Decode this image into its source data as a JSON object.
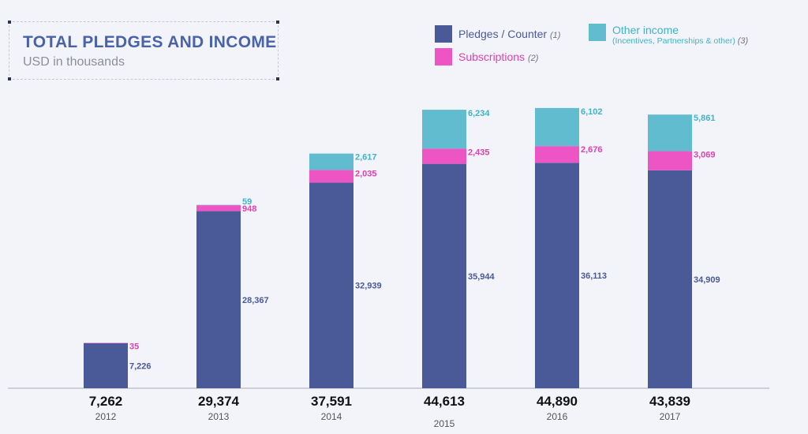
{
  "chart_data": {
    "type": "bar",
    "stacked": true,
    "title": "TOTAL PLEDGES AND INCOME",
    "subtitle": "USD in thousands",
    "categories": [
      "2012",
      "2013",
      "2014",
      "2015",
      "2016",
      "2017"
    ],
    "series": [
      {
        "name": "Pledges / Counter",
        "note": "(1)",
        "color": "#4a5a99",
        "label_color": "#4a5a99",
        "values": [
          7226,
          28367,
          32939,
          35944,
          36113,
          34909
        ]
      },
      {
        "name": "Subscriptions",
        "note": "(2)",
        "color": "#ee55c4",
        "label_color": "#e040b0",
        "values": [
          35,
          948,
          2035,
          2435,
          2676,
          3069
        ]
      },
      {
        "name": "Other income",
        "sub_name": "(Incentives, Partnerships & other)",
        "note": "(3)",
        "color": "#62bccf",
        "label_color": "#3fb3c9",
        "values": [
          null,
          59,
          2617,
          6234,
          6102,
          5861
        ]
      }
    ],
    "totals": [
      "7,262",
      "29,374",
      "37,591",
      "44,613",
      "44,890",
      "43,839"
    ],
    "ylim": [
      0,
      45000
    ],
    "grid": false,
    "legend_position": "top-right"
  }
}
